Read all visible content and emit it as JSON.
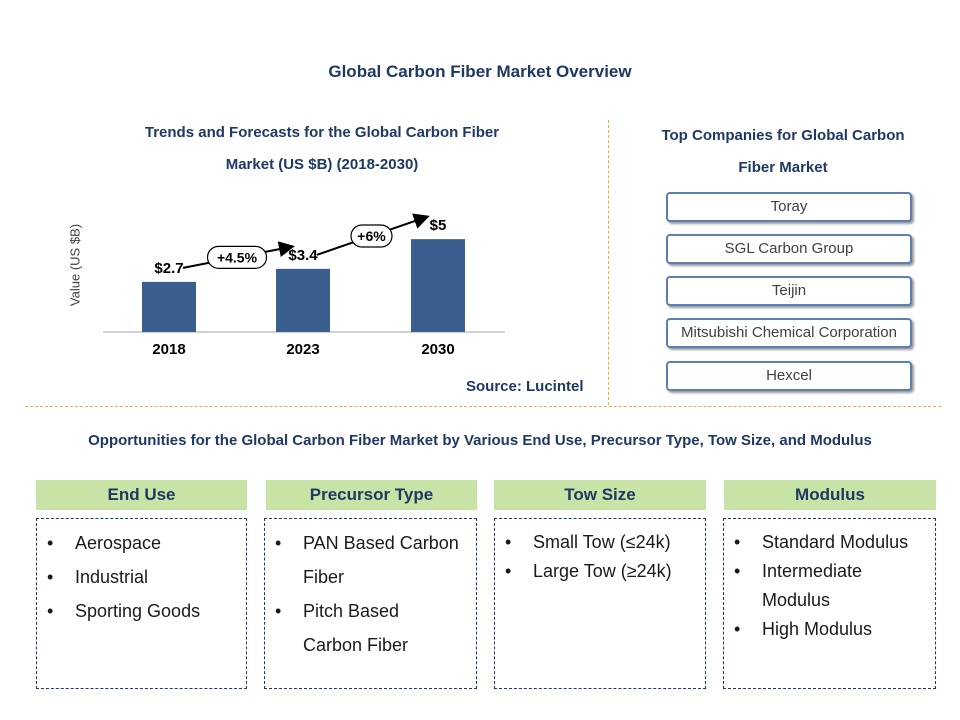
{
  "page_title": "Global Carbon Fiber Market Overview",
  "chart_title_line1": "Trends and Forecasts for the Global Carbon Fiber",
  "chart_title_line2": "Market (US $B) (2018-2030)",
  "source": "Source: Lucintel",
  "chart_data": {
    "type": "bar",
    "title": "Trends and Forecasts for the Global Carbon Fiber Market (US $B) (2018-2030)",
    "categories": [
      "2018",
      "2023",
      "2030"
    ],
    "values": [
      2.7,
      3.4,
      5
    ],
    "data_labels": [
      "$2.7",
      "$3.4",
      "$5"
    ],
    "ylabel": "Value (US $B)",
    "xlabel": "",
    "ylim": [
      0,
      5.6
    ],
    "bar_color": "#3a5f8f",
    "grid": false,
    "growth_annotations": [
      {
        "from": "2018",
        "to": "2023",
        "label": "+4.5%"
      },
      {
        "from": "2023",
        "to": "2030",
        "label": "+6%"
      }
    ]
  },
  "companies": {
    "title_line1": "Top Companies for Global Carbon",
    "title_line2": "Fiber Market",
    "items": [
      "Toray",
      "SGL Carbon Group",
      "Teijin",
      "Mitsubishi Chemical Corporation",
      "Hexcel"
    ]
  },
  "opportunities": {
    "title": "Opportunities for the Global Carbon Fiber Market by Various End Use, Precursor Type, Tow Size, and Modulus",
    "columns": [
      {
        "header": "End Use",
        "items": [
          "Aerospace",
          "Industrial",
          "Sporting Goods"
        ]
      },
      {
        "header": "Precursor Type",
        "items": [
          "PAN Based Carbon Fiber",
          "Pitch Based Carbon Fiber"
        ]
      },
      {
        "header": "Tow Size",
        "items": [
          "Small Tow (≤24k)",
          "Large Tow (≥24k)"
        ]
      },
      {
        "header": "Modulus",
        "items": [
          "Standard Modulus",
          "Intermediate Modulus",
          "High Modulus"
        ]
      }
    ]
  },
  "colors": {
    "title_navy": "#1f3864",
    "header_green": "#c8e3a6",
    "divider_gold": "#e8b030",
    "company_border": "#5a7fb0"
  }
}
